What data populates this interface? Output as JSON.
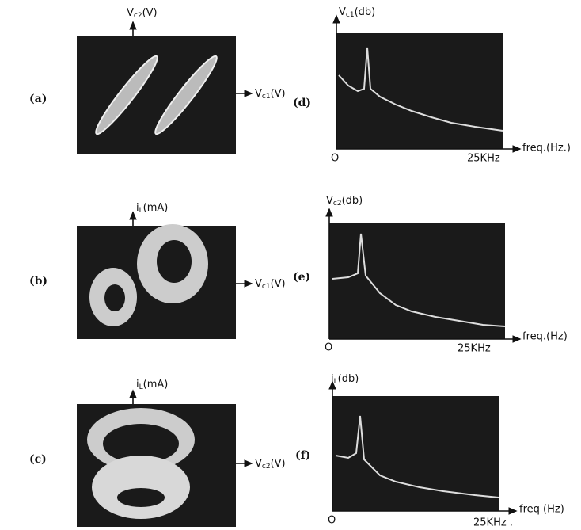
{
  "panels": [
    {
      "label": "(a)",
      "y_axis": {
        "main": "V",
        "sub": "c2",
        "unit": "(V)"
      },
      "x_axis": {
        "main": "V",
        "sub": "c1",
        "unit": "(V)"
      }
    },
    {
      "label": "(b)",
      "y_axis": {
        "main": "i",
        "sub": "L",
        "unit": "(mA)"
      },
      "x_axis": {
        "main": "V",
        "sub": "c1",
        "unit": "(V)"
      }
    },
    {
      "label": "(c)",
      "y_axis": {
        "main": "i",
        "sub": "L",
        "unit": "(mA)"
      },
      "x_axis": {
        "main": "V",
        "sub": "c2",
        "unit": "(V)"
      }
    },
    {
      "label": "(d)",
      "y_axis": {
        "main": "V",
        "sub": "c1",
        "unit": "(db)"
      },
      "x_axis": "freq.(Hz.)",
      "origin": "O",
      "x_max": "25KHz"
    },
    {
      "label": "(e)",
      "y_axis": {
        "main": "V",
        "sub": "c2",
        "unit": "(db)"
      },
      "x_axis": "freq.(Hz)",
      "origin": "O",
      "x_max": "25KHz"
    },
    {
      "label": "(f)",
      "y_axis": {
        "main": "i",
        "sub": "L",
        "unit": "(db)"
      },
      "x_axis": "freq (Hz)",
      "origin": "O",
      "x_max": "25KHz ."
    }
  ]
}
